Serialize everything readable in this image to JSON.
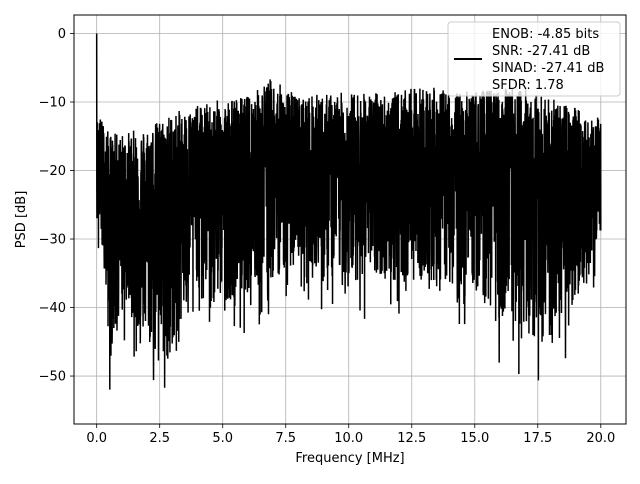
{
  "chart_data": {
    "type": "line",
    "xlabel": "Frequency [MHz]",
    "ylabel": "PSD [dB]",
    "xlim": [
      -0.9,
      21.0
    ],
    "ylim": [
      -57.0,
      2.7
    ],
    "x_ticks": [
      0.0,
      2.5,
      5.0,
      7.5,
      10.0,
      12.5,
      15.0,
      17.5,
      20.0
    ],
    "x_tick_labels": [
      "0.0",
      "2.5",
      "5.0",
      "7.5",
      "10.0",
      "12.5",
      "15.0",
      "17.5",
      "20.0"
    ],
    "y_ticks": [
      0,
      -10,
      -20,
      -30,
      -40,
      -50
    ],
    "y_tick_labels": [
      "0",
      "−10",
      "−20",
      "−30",
      "−40",
      "−50"
    ],
    "grid": true,
    "legend_placement": "upper-right",
    "legend_entries": [
      "ENOB: -4.85 bits",
      "SNR: -27.41 dB",
      "SINAD: -27.41 dB",
      "SFDR: 1.78"
    ],
    "series": [
      {
        "color": "#000000",
        "x_range": [
          0.0,
          20.0
        ],
        "peak": {
          "x": 0.0,
          "y": 0.0
        },
        "upper_envelope": [
          [
            0.1,
            -9
          ],
          [
            0.5,
            -12
          ],
          [
            1.0,
            -12
          ],
          [
            2.0,
            -11
          ],
          [
            3.0,
            -9
          ],
          [
            4.0,
            -8
          ],
          [
            5.0,
            -7
          ],
          [
            6.0,
            -6.5
          ],
          [
            6.9,
            -4
          ],
          [
            8.0,
            -6.5
          ],
          [
            10.0,
            -6
          ],
          [
            12.0,
            -6
          ],
          [
            13.0,
            -5
          ],
          [
            14.0,
            -6
          ],
          [
            16.0,
            -5.5
          ],
          [
            17.0,
            -5
          ],
          [
            18.0,
            -7
          ],
          [
            19.0,
            -8
          ],
          [
            20.0,
            -10
          ]
        ],
        "lower_envelope": [
          [
            0.1,
            -33
          ],
          [
            0.4,
            -44
          ],
          [
            0.5,
            -54.5
          ],
          [
            1.0,
            -45
          ],
          [
            1.8,
            -50
          ],
          [
            2.8,
            -54
          ],
          [
            4.0,
            -42
          ],
          [
            5.0,
            -45
          ],
          [
            6.7,
            -43
          ],
          [
            8.0,
            -39
          ],
          [
            10.0,
            -42
          ],
          [
            12.7,
            -42
          ],
          [
            15.0,
            -43
          ],
          [
            16.2,
            -50.5
          ],
          [
            18.2,
            -51.5
          ],
          [
            20.0,
            -35
          ]
        ],
        "min_value": -54.5
      }
    ]
  }
}
